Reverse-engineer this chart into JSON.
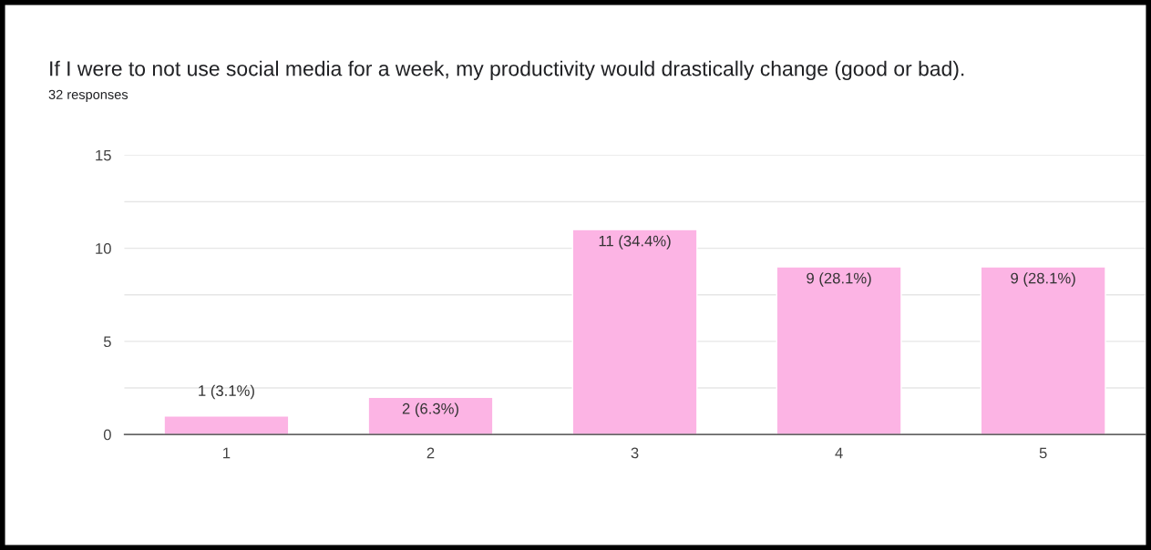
{
  "chart_data": {
    "type": "bar",
    "title": "If I were to not use social media for a week, my productivity would drastically change (good or bad).",
    "subtitle": "32 responses",
    "categories": [
      "1",
      "2",
      "3",
      "4",
      "5"
    ],
    "values": [
      1,
      2,
      11,
      9,
      9
    ],
    "value_labels": [
      "1 (3.1%)",
      "2 (6.3%)",
      "11 (34.4%)",
      "9 (28.1%)",
      "9 (28.1%)"
    ],
    "color": "#fcb4e4",
    "ylim": [
      0,
      15
    ],
    "yticks": [
      0,
      {
        "value": 2.5,
        "label": null
      },
      5,
      {
        "value": 7.5,
        "label": null
      },
      10,
      {
        "value": 12.5,
        "label": null
      },
      15
    ],
    "grid": "y"
  }
}
